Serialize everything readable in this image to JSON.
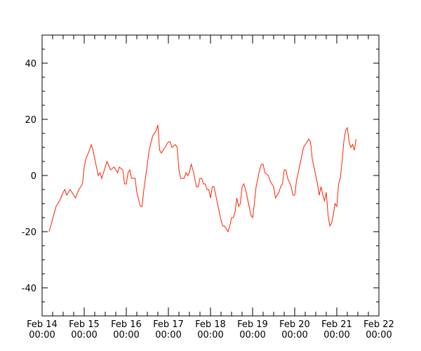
{
  "chart_data": {
    "type": "line",
    "title": "",
    "xlabel": "",
    "ylabel": "",
    "x_tick_labels": [
      {
        "line1": "Feb 14",
        "line2": "00:00"
      },
      {
        "line1": "Feb 15",
        "line2": "00:00"
      },
      {
        "line1": "Feb 16",
        "line2": "00:00"
      },
      {
        "line1": "Feb 17",
        "line2": "00:00"
      },
      {
        "line1": "Feb 18",
        "line2": "00:00"
      },
      {
        "line1": "Feb 19",
        "line2": "00:00"
      },
      {
        "line1": "Feb 20",
        "line2": "00:00"
      },
      {
        "line1": "Feb 21",
        "line2": "00:00"
      },
      {
        "line1": "Feb 22",
        "line2": "00:00"
      }
    ],
    "y_ticks": [
      40,
      20,
      0,
      -20,
      -40
    ],
    "ylim": [
      -50,
      50
    ],
    "xlim": [
      "Feb 14 00:00",
      "Feb 22 00:00"
    ],
    "grid": false,
    "series_color": "#ff2200",
    "series": [
      {
        "values": [
          [
            "Feb 14 04:00",
            -20
          ],
          [
            "Feb 14 08:00",
            -11
          ],
          [
            "Feb 14 10:00",
            -9
          ],
          [
            "Feb 14 12:00",
            -6
          ],
          [
            "Feb 14 13:00",
            -5
          ],
          [
            "Feb 14 14:00",
            -7
          ],
          [
            "Feb 14 16:00",
            -5
          ],
          [
            "Feb 14 18:00",
            -7
          ],
          [
            "Feb 14 19:00",
            -8
          ],
          [
            "Feb 14 21:00",
            -5
          ],
          [
            "Feb 14 23:00",
            -3
          ],
          [
            "Feb 15 00:00",
            3
          ],
          [
            "Feb 15 01:00",
            6
          ],
          [
            "Feb 15 03:00",
            9
          ],
          [
            "Feb 15 04:00",
            11
          ],
          [
            "Feb 15 05:00",
            9
          ],
          [
            "Feb 15 07:00",
            3
          ],
          [
            "Feb 15 08:00",
            0
          ],
          [
            "Feb 15 09:00",
            1
          ],
          [
            "Feb 15 10:00",
            -1
          ],
          [
            "Feb 15 12:00",
            3
          ],
          [
            "Feb 15 13:00",
            5
          ],
          [
            "Feb 15 15:00",
            2
          ],
          [
            "Feb 15 17:00",
            3
          ],
          [
            "Feb 15 19:00",
            1
          ],
          [
            "Feb 15 20:00",
            3
          ],
          [
            "Feb 15 22:00",
            2
          ],
          [
            "Feb 15 23:00",
            -3
          ],
          [
            "Feb 16 00:00",
            -3
          ],
          [
            "Feb 16 01:00",
            1
          ],
          [
            "Feb 16 02:00",
            2
          ],
          [
            "Feb 16 03:00",
            -1
          ],
          [
            "Feb 16 05:00",
            -1
          ],
          [
            "Feb 16 06:00",
            -6
          ],
          [
            "Feb 16 08:00",
            -11
          ],
          [
            "Feb 16 09:00",
            -11
          ],
          [
            "Feb 16 10:00",
            -5
          ],
          [
            "Feb 16 12:00",
            4
          ],
          [
            "Feb 16 13:00",
            9
          ],
          [
            "Feb 16 15:00",
            14
          ],
          [
            "Feb 16 17:00",
            16
          ],
          [
            "Feb 16 18:00",
            18
          ],
          [
            "Feb 16 19:00",
            9
          ],
          [
            "Feb 16 20:00",
            8
          ],
          [
            "Feb 16 22:00",
            10
          ],
          [
            "Feb 17 00:00",
            12
          ],
          [
            "Feb 17 01:00",
            12
          ],
          [
            "Feb 17 02:00",
            10
          ],
          [
            "Feb 17 04:00",
            11
          ],
          [
            "Feb 17 05:00",
            10
          ],
          [
            "Feb 17 06:00",
            2
          ],
          [
            "Feb 17 07:00",
            -1
          ],
          [
            "Feb 17 09:00",
            -1
          ],
          [
            "Feb 17 10:00",
            1
          ],
          [
            "Feb 17 11:00",
            0
          ],
          [
            "Feb 17 12:00",
            1
          ],
          [
            "Feb 17 13:00",
            4
          ],
          [
            "Feb 17 14:00",
            2
          ],
          [
            "Feb 17 16:00",
            -4
          ],
          [
            "Feb 17 17:00",
            -4
          ],
          [
            "Feb 17 18:00",
            -1
          ],
          [
            "Feb 17 19:00",
            -1
          ],
          [
            "Feb 17 20:00",
            -3
          ],
          [
            "Feb 17 21:00",
            -3
          ],
          [
            "Feb 17 22:00",
            -5
          ],
          [
            "Feb 17 23:00",
            -5
          ],
          [
            "Feb 18 00:00",
            -8
          ],
          [
            "Feb 18 01:00",
            -4
          ],
          [
            "Feb 18 02:00",
            -4
          ],
          [
            "Feb 18 03:00",
            -7
          ],
          [
            "Feb 18 04:00",
            -10
          ],
          [
            "Feb 18 05:00",
            -13
          ],
          [
            "Feb 18 06:00",
            -16
          ],
          [
            "Feb 18 07:00",
            -18
          ],
          [
            "Feb 18 08:00",
            -18
          ],
          [
            "Feb 18 09:00",
            -19
          ],
          [
            "Feb 18 10:00",
            -20
          ],
          [
            "Feb 18 11:00",
            -18
          ],
          [
            "Feb 18 12:00",
            -15
          ],
          [
            "Feb 18 13:00",
            -15
          ],
          [
            "Feb 18 14:00",
            -13
          ],
          [
            "Feb 18 15:00",
            -8
          ],
          [
            "Feb 18 16:00",
            -11
          ],
          [
            "Feb 18 17:00",
            -10
          ],
          [
            "Feb 18 18:00",
            -4
          ],
          [
            "Feb 18 19:00",
            -3
          ],
          [
            "Feb 18 20:00",
            -5
          ],
          [
            "Feb 18 21:00",
            -8
          ],
          [
            "Feb 18 23:00",
            -14
          ],
          [
            "Feb 19 00:00",
            -15
          ],
          [
            "Feb 19 01:00",
            -10
          ],
          [
            "Feb 19 02:00",
            -4
          ],
          [
            "Feb 19 04:00",
            2
          ],
          [
            "Feb 19 05:00",
            4
          ],
          [
            "Feb 19 06:00",
            4
          ],
          [
            "Feb 19 07:00",
            1
          ],
          [
            "Feb 19 09:00",
            0
          ],
          [
            "Feb 19 10:00",
            -2
          ],
          [
            "Feb 19 12:00",
            -4
          ],
          [
            "Feb 19 13:00",
            -8
          ],
          [
            "Feb 19 15:00",
            -6
          ],
          [
            "Feb 19 16:00",
            -4
          ],
          [
            "Feb 19 17:00",
            -3
          ],
          [
            "Feb 19 18:00",
            2
          ],
          [
            "Feb 19 19:00",
            2
          ],
          [
            "Feb 19 20:00",
            -1
          ],
          [
            "Feb 19 22:00",
            -4
          ],
          [
            "Feb 19 23:00",
            -7
          ],
          [
            "Feb 20 00:00",
            -7
          ],
          [
            "Feb 20 01:00",
            -2
          ],
          [
            "Feb 20 03:00",
            4
          ],
          [
            "Feb 20 05:00",
            10
          ],
          [
            "Feb 20 07:00",
            12
          ],
          [
            "Feb 20 08:00",
            13
          ],
          [
            "Feb 20 09:00",
            12
          ],
          [
            "Feb 20 10:00",
            6
          ],
          [
            "Feb 20 12:00",
            0
          ],
          [
            "Feb 20 13:00",
            -3
          ],
          [
            "Feb 20 14:00",
            -7
          ],
          [
            "Feb 20 15:00",
            -4
          ],
          [
            "Feb 20 16:00",
            -7
          ],
          [
            "Feb 20 17:00",
            -9
          ],
          [
            "Feb 20 18:00",
            -6
          ],
          [
            "Feb 20 19:00",
            -14
          ],
          [
            "Feb 20 20:00",
            -18
          ],
          [
            "Feb 20 21:00",
            -17
          ],
          [
            "Feb 20 22:00",
            -14
          ],
          [
            "Feb 20 23:00",
            -10
          ],
          [
            "Feb 21 00:00",
            -11
          ],
          [
            "Feb 21 01:00",
            -3
          ],
          [
            "Feb 21 02:00",
            -1
          ],
          [
            "Feb 21 03:00",
            5
          ],
          [
            "Feb 21 04:00",
            12
          ],
          [
            "Feb 21 05:00",
            16
          ],
          [
            "Feb 21 06:00",
            17
          ],
          [
            "Feb 21 07:00",
            12
          ],
          [
            "Feb 21 08:00",
            10
          ],
          [
            "Feb 21 09:00",
            11
          ],
          [
            "Feb 21 10:00",
            9
          ],
          [
            "Feb 21 11:00",
            13
          ]
        ]
      }
    ]
  }
}
